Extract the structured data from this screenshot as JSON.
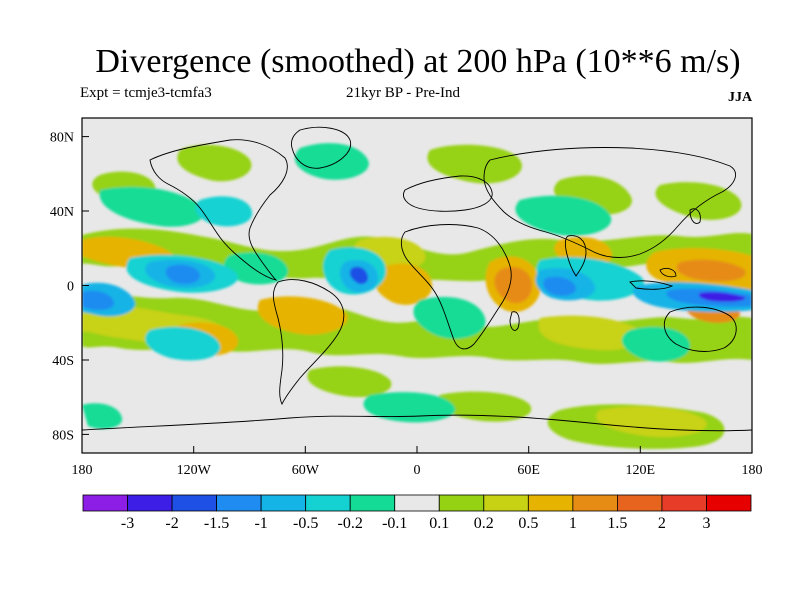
{
  "title": "Divergence (smoothed) at 200 hPa (10**6 m/s)",
  "experiment_label": "Expt = tcmje3-tcmfa3",
  "period_label": "21kyr BP - Pre-Ind",
  "season_label": "JJA",
  "axes": {
    "lon_ticks": [
      "180",
      "120W",
      "60W",
      "0",
      "60E",
      "120E",
      "180"
    ],
    "lat_ticks": [
      "80N",
      "40N",
      "0",
      "40S",
      "80S"
    ]
  },
  "colorbar": {
    "labels": [
      "-3",
      "-2",
      "-1.5",
      "-1",
      "-0.5",
      "-0.2",
      "-0.1",
      "0.1",
      "0.2",
      "0.5",
      "1",
      "1.5",
      "2",
      "3"
    ],
    "colors": [
      "#8c1ee6",
      "#3c1ee6",
      "#1e50e6",
      "#1e8cf0",
      "#14b4e6",
      "#14d2d2",
      "#14dc96",
      "#e8e8e8",
      "#96d214",
      "#c8d214",
      "#e6b400",
      "#e68c14",
      "#e6641e",
      "#e63c28",
      "#e60000"
    ]
  }
}
